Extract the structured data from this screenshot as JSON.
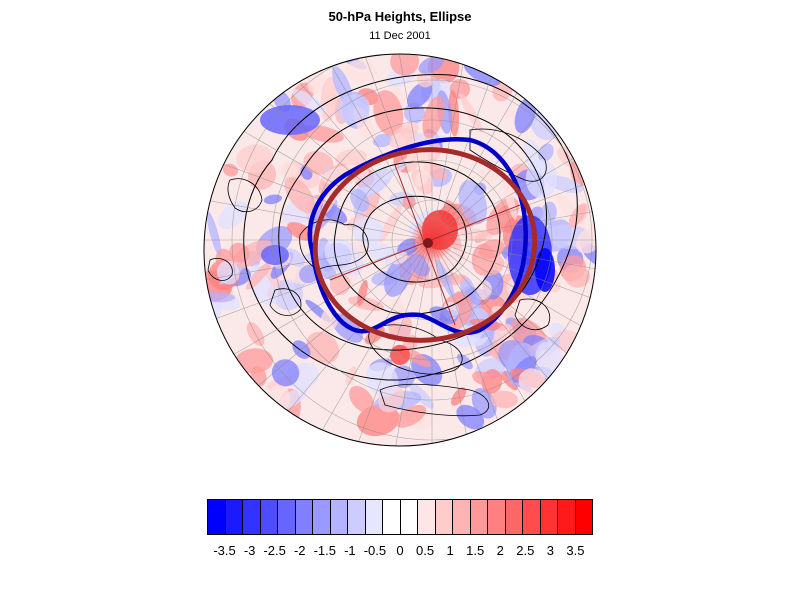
{
  "title": "50-hPa Heights, Ellipse",
  "subtitle": "11 Dec 2001",
  "map": {
    "projection": "orthographic",
    "hemisphere": "north",
    "field": "50-hPa height anomaly",
    "ellipse_color": "#a52a2a",
    "contour_color": "#0000c8",
    "coastline_color": "#000000",
    "gridline_color": "#888888"
  },
  "colorbar": {
    "colors": [
      "#0000ff",
      "#1a1aff",
      "#3333ff",
      "#4d4dff",
      "#6666ff",
      "#8080ff",
      "#9999ff",
      "#b3b3ff",
      "#ccccff",
      "#e6e6ff",
      "#ffffff",
      "#ffffff",
      "#ffe6e6",
      "#ffcccc",
      "#ffb3b3",
      "#ff9999",
      "#ff8080",
      "#ff6666",
      "#ff4d4d",
      "#ff3333",
      "#ff1a1a",
      "#ff0000"
    ],
    "labels": [
      "-3.5",
      "-3",
      "-2.5",
      "-2",
      "-1.5",
      "-1",
      "-0.5",
      "0",
      "0.5",
      "1",
      "1.5",
      "2",
      "2.5",
      "3",
      "3.5"
    ]
  }
}
